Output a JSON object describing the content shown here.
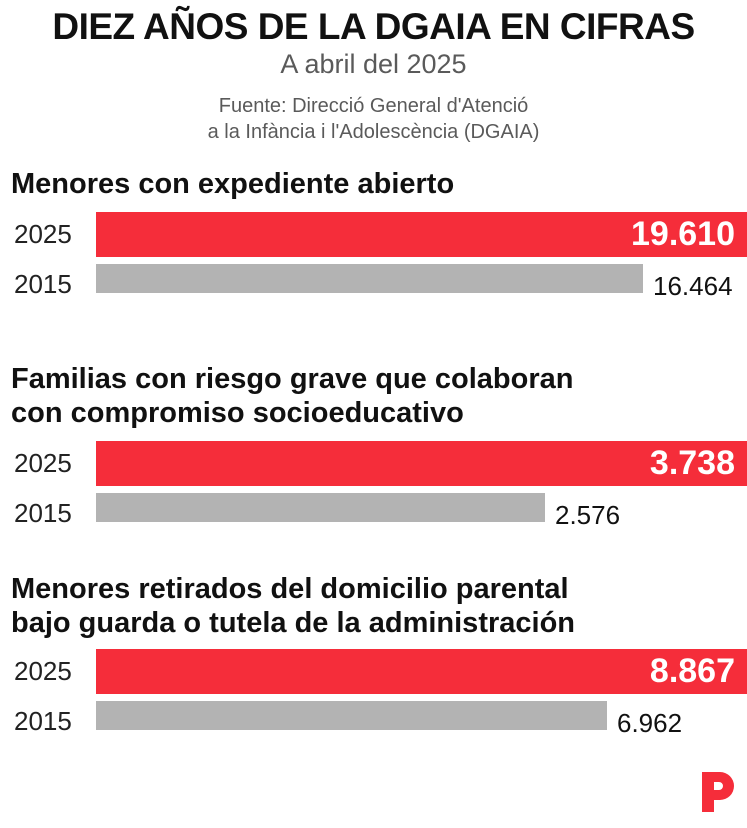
{
  "header": {
    "title": "DIEZ AÑOS DE LA DGAIA EN CIFRAS",
    "subtitle": "A abril del 2025",
    "source_line1": "Fuente: Direcció General d'Atenció",
    "source_line2": "a la Infància i l'Adolescència (DGAIA)"
  },
  "colors": {
    "current": "#f52d3a",
    "previous": "#b3b3b3",
    "logo": "#f52d3a"
  },
  "logo_icon": "publisher-logo-p",
  "chart_data": [
    {
      "type": "bar",
      "orientation": "horizontal",
      "title_lines": [
        "Menores con expediente abierto"
      ],
      "categories": [
        "2025",
        "2015"
      ],
      "values": [
        19610,
        16464
      ],
      "labels": [
        "19.610",
        "16.464"
      ]
    },
    {
      "type": "bar",
      "orientation": "horizontal",
      "title_lines": [
        "Familias con riesgo grave que colaboran",
        "con compromiso socioeducativo"
      ],
      "categories": [
        "2025",
        "2015"
      ],
      "values": [
        3738,
        2576
      ],
      "labels": [
        "3.738",
        "2.576"
      ]
    },
    {
      "type": "bar",
      "orientation": "horizontal",
      "title_lines": [
        "Menores retirados del domicilio parental",
        "bajo guarda o tutela de la administración"
      ],
      "categories": [
        "2025",
        "2015"
      ],
      "values": [
        8867,
        6962
      ],
      "labels": [
        "8.867",
        "6.962"
      ]
    }
  ]
}
